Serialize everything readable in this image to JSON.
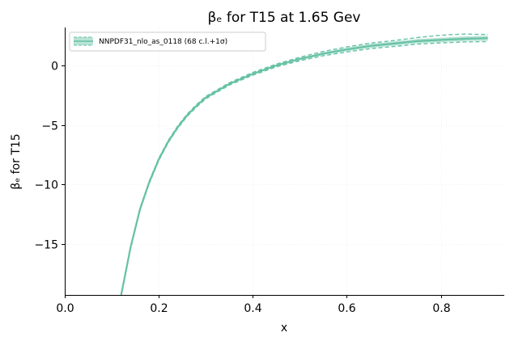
{
  "chart_data": {
    "type": "line",
    "title": "βₑ for T15 at 1.65 Gev",
    "xlabel": "x",
    "ylabel": "βₑ for T15",
    "xlim": [
      0.0,
      0.935
    ],
    "ylim": [
      -19.3,
      3.2
    ],
    "xticks": [
      {
        "value": 0.0,
        "label": "0.0"
      },
      {
        "value": 0.2,
        "label": "0.2"
      },
      {
        "value": 0.4,
        "label": "0.4"
      },
      {
        "value": 0.6,
        "label": "0.6"
      },
      {
        "value": 0.8,
        "label": "0.8"
      }
    ],
    "yticks": [
      {
        "value": 0,
        "label": "0"
      },
      {
        "value": -5,
        "label": "−5"
      },
      {
        "value": -10,
        "label": "−10"
      },
      {
        "value": -15,
        "label": "−15"
      }
    ],
    "grid": true,
    "legend_position": "top-left",
    "color": "#66c2a5",
    "series": [
      {
        "name": "NNPDF31_nlo_as_0118 (68 c.l.+1σ)",
        "style": "central line with shaded 68% c.l. band and dashed 1σ lines",
        "x": [
          0.12,
          0.14,
          0.16,
          0.18,
          0.2,
          0.22,
          0.24,
          0.26,
          0.28,
          0.3,
          0.35,
          0.4,
          0.45,
          0.5,
          0.55,
          0.6,
          0.65,
          0.7,
          0.75,
          0.8,
          0.85,
          0.9
        ],
        "y": [
          -19.3,
          -15.3,
          -12.1,
          -9.8,
          -7.9,
          -6.4,
          -5.2,
          -4.2,
          -3.4,
          -2.7,
          -1.55,
          -0.7,
          0.0,
          0.55,
          1.0,
          1.35,
          1.65,
          1.85,
          2.05,
          2.15,
          2.25,
          2.3
        ],
        "band_lower": [
          -19.35,
          -15.35,
          -12.15,
          -9.85,
          -7.95,
          -6.45,
          -5.25,
          -4.25,
          -3.45,
          -2.75,
          -1.62,
          -0.78,
          -0.08,
          0.45,
          0.88,
          1.2,
          1.48,
          1.67,
          1.87,
          1.97,
          2.05,
          2.1
        ],
        "band_upper": [
          -19.25,
          -15.25,
          -12.05,
          -9.75,
          -7.85,
          -6.35,
          -5.15,
          -4.15,
          -3.35,
          -2.65,
          -1.48,
          -0.62,
          0.08,
          0.65,
          1.12,
          1.5,
          1.82,
          2.03,
          2.23,
          2.33,
          2.45,
          2.5
        ],
        "sigma_lower": [
          -19.4,
          -15.4,
          -12.2,
          -9.9,
          -8.0,
          -6.5,
          -5.3,
          -4.3,
          -3.5,
          -2.8,
          -1.65,
          -0.82,
          -0.12,
          0.4,
          0.82,
          1.14,
          1.42,
          1.6,
          1.8,
          1.9,
          1.98,
          2.02
        ],
        "sigma_upper": [
          -19.2,
          -15.2,
          -12.0,
          -9.7,
          -7.8,
          -6.3,
          -5.1,
          -4.1,
          -3.3,
          -2.6,
          -1.45,
          -0.58,
          0.12,
          0.7,
          1.18,
          1.56,
          1.88,
          2.1,
          2.35,
          2.55,
          2.65,
          2.6
        ]
      }
    ]
  }
}
